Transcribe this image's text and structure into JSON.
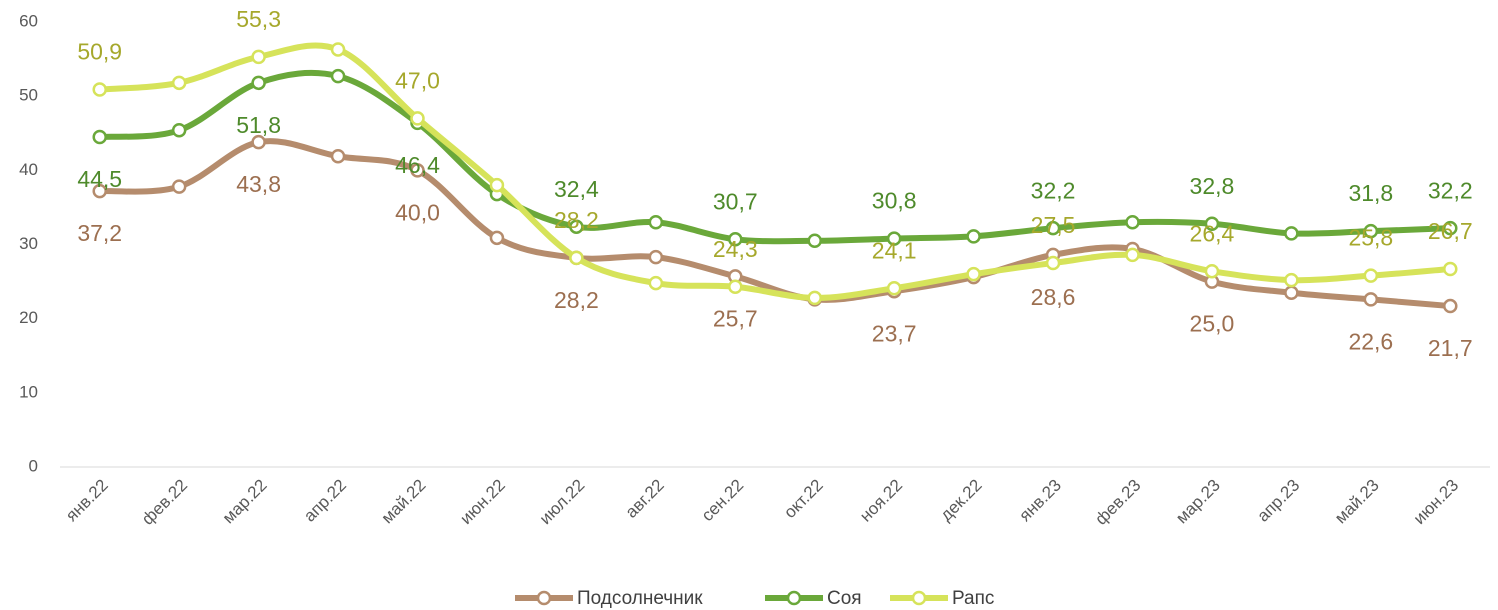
{
  "chart_data": {
    "type": "line",
    "categories": [
      "янв.22",
      "фев.22",
      "мар.22",
      "апр.22",
      "май.22",
      "июн.22",
      "июл.22",
      "авг.22",
      "сен.22",
      "окт.22",
      "ноя.22",
      "дек.22",
      "янв.23",
      "фев.23",
      "мар.23",
      "апр.23",
      "май.23",
      "июн.23"
    ],
    "ylim": [
      0,
      60
    ],
    "yticks": [
      0,
      10,
      20,
      30,
      40,
      50,
      60
    ],
    "series": [
      {
        "name": "Подсолнечник",
        "color": "#b58c6d",
        "values": [
          37.2,
          37.8,
          43.8,
          41.9,
          40.0,
          30.9,
          28.2,
          28.3,
          25.7,
          22.6,
          23.7,
          25.6,
          28.6,
          29.4,
          25.0,
          23.5,
          22.6,
          21.7
        ],
        "value_labels": [
          "37,2",
          null,
          "43,8",
          null,
          "40,0",
          null,
          "28,2",
          null,
          "25,7",
          null,
          "23,7",
          null,
          "28,6",
          null,
          "25,0",
          null,
          "22,6",
          "21,7"
        ]
      },
      {
        "name": "Соя",
        "color": "#6aa83a",
        "values": [
          44.5,
          45.4,
          51.8,
          52.7,
          46.4,
          36.8,
          32.4,
          33.0,
          30.7,
          30.5,
          30.8,
          31.1,
          32.2,
          33.0,
          32.8,
          31.5,
          31.8,
          32.2
        ],
        "value_labels": [
          "44,5",
          null,
          "51,8",
          null,
          "46,4",
          null,
          "32,4",
          null,
          "30,7",
          null,
          "30,8",
          null,
          "32,2",
          null,
          "32,8",
          null,
          "31,8",
          "32,2"
        ]
      },
      {
        "name": "Рапс",
        "color": "#d6e35a",
        "values": [
          50.9,
          51.8,
          55.3,
          56.3,
          47.0,
          38.0,
          28.2,
          24.8,
          24.3,
          22.8,
          24.1,
          26.0,
          27.5,
          28.6,
          26.4,
          25.2,
          25.8,
          26.7
        ],
        "value_labels": [
          "50,9",
          null,
          "55,3",
          null,
          "47,0",
          null,
          "28,2",
          null,
          "24,3",
          null,
          "24,1",
          null,
          "27,5",
          null,
          "26,4",
          null,
          "25,8",
          "26,7"
        ]
      }
    ]
  }
}
